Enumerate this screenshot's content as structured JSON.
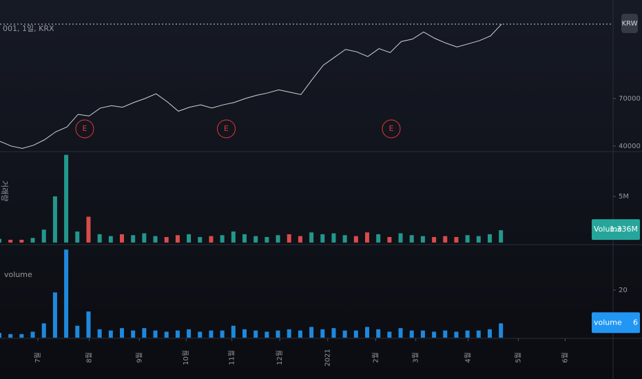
{
  "chart_data": [
    {
      "type": "line",
      "title": "001, 1일, KRX",
      "currency": "KRW",
      "color": "#d1d4dc",
      "x": [
        0,
        1,
        2,
        3,
        4,
        5,
        6,
        7,
        8,
        9,
        10,
        11,
        12,
        13,
        14,
        15,
        16,
        17,
        18,
        19,
        20,
        21,
        22,
        23,
        24,
        25,
        26,
        27,
        28,
        29,
        30,
        31,
        32,
        33,
        34,
        35,
        36,
        37,
        38,
        39,
        40,
        41,
        42,
        43,
        44,
        45
      ],
      "values": [
        43000,
        40000,
        38500,
        40500,
        44000,
        49000,
        52000,
        60000,
        59000,
        64000,
        65500,
        64500,
        67500,
        70000,
        73000,
        68000,
        62000,
        64500,
        66000,
        64000,
        66000,
        67500,
        70000,
        72000,
        73500,
        75500,
        74000,
        72500,
        82000,
        91000,
        96000,
        101000,
        99500,
        96500,
        101500,
        99000,
        106000,
        107500,
        112000,
        108000,
        105000,
        102500,
        104500,
        106500,
        109500,
        117000
      ],
      "events": [
        {
          "x": 7.6,
          "label": "E"
        },
        {
          "x": 20.3,
          "label": "E"
        },
        {
          "x": 35.1,
          "label": "E"
        }
      ],
      "event_color": "#e53935",
      "xlim": [
        0,
        55
      ],
      "ylim": [
        36500,
        132200
      ],
      "yticks": [
        40000,
        70000
      ]
    },
    {
      "type": "bar",
      "title": "거래량",
      "up_color": "#26a69a",
      "down_color": "#ef5350",
      "name": "Volume",
      "last_value_label": "1.336M",
      "x": [
        0,
        1,
        2,
        3,
        4,
        5,
        6,
        7,
        8,
        9,
        10,
        11,
        12,
        13,
        14,
        15,
        16,
        17,
        18,
        19,
        20,
        21,
        22,
        23,
        24,
        25,
        26,
        27,
        28,
        29,
        30,
        31,
        32,
        33,
        34,
        35,
        36,
        37,
        38,
        39,
        40,
        41,
        42,
        43,
        44,
        45
      ],
      "values": [
        0.4,
        0.3,
        0.3,
        0.5,
        1.4,
        5.0,
        9.5,
        1.2,
        2.8,
        0.9,
        0.7,
        0.9,
        0.8,
        1.0,
        0.7,
        0.6,
        0.8,
        0.9,
        0.6,
        0.7,
        0.8,
        1.2,
        0.9,
        0.7,
        0.6,
        0.8,
        0.9,
        0.7,
        1.1,
        0.9,
        1.0,
        0.8,
        0.7,
        1.1,
        0.9,
        0.6,
        1.0,
        0.8,
        0.7,
        0.6,
        0.7,
        0.6,
        0.8,
        0.7,
        0.9,
        1.336
      ],
      "xlim": [
        0,
        55
      ],
      "ylim": [
        0,
        9.7
      ],
      "yticks": [
        {
          "value": 5,
          "label": "5M"
        }
      ]
    },
    {
      "type": "bar",
      "title": "volume",
      "name": "volume",
      "color": "#2196f3",
      "x": [
        0,
        1,
        2,
        3,
        4,
        5,
        6,
        7,
        8,
        9,
        10,
        11,
        12,
        13,
        14,
        15,
        16,
        17,
        18,
        19,
        20,
        21,
        22,
        23,
        24,
        25,
        26,
        27,
        28,
        29,
        30,
        31,
        32,
        33,
        34,
        35,
        36,
        37,
        38,
        39,
        40,
        41,
        42,
        43,
        44,
        45
      ],
      "values": [
        2,
        1.5,
        1.5,
        2.5,
        6,
        19,
        37,
        5,
        11,
        3.5,
        3,
        4,
        3,
        4,
        3,
        2.5,
        3,
        3.5,
        2.5,
        3,
        3,
        5,
        3.5,
        3,
        2.5,
        3,
        3.5,
        3,
        4.5,
        3.5,
        4,
        3,
        3,
        4.5,
        3.5,
        2.5,
        4,
        3,
        3,
        2.5,
        3,
        2.5,
        3,
        3,
        3.5,
        6
      ],
      "xlim": [
        0,
        55
      ],
      "ylim": [
        0,
        38.5
      ],
      "yticks": [
        20
      ],
      "xticks": [
        {
          "value": 3.4,
          "label": "7월"
        },
        {
          "value": 8.0,
          "label": "8월"
        },
        {
          "value": 12.5,
          "label": "9월"
        },
        {
          "value": 16.7,
          "label": "10월"
        },
        {
          "value": 20.8,
          "label": "11월"
        },
        {
          "value": 25.1,
          "label": "12월"
        },
        {
          "value": 29.4,
          "label": "2021"
        },
        {
          "value": 33.7,
          "label": "2월"
        },
        {
          "value": 37.3,
          "label": "3월"
        },
        {
          "value": 42.0,
          "label": "4월"
        },
        {
          "value": 46.5,
          "label": "5월"
        },
        {
          "value": 50.7,
          "label": "6월"
        }
      ]
    }
  ]
}
